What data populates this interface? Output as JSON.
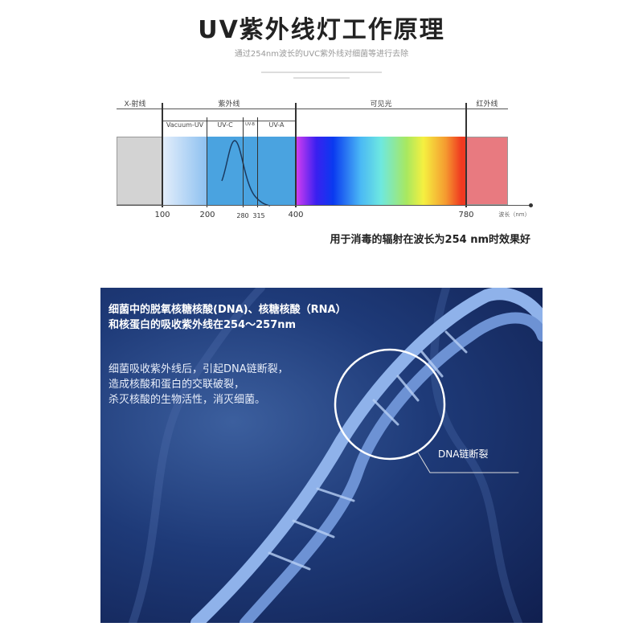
{
  "header": {
    "title": "UV紫外线灯工作原理",
    "subtitle": "通过254nm波长的UVC紫外线对细菌等进行去除"
  },
  "spectrum": {
    "regions": [
      "X-射线",
      "紫外线",
      "可见光",
      "红外线"
    ],
    "uv_subbands": [
      "Vacuum-UV",
      "UV-C",
      "UV-B",
      "UV-A"
    ],
    "ticks": [
      "100",
      "200",
      "280",
      "315",
      "400",
      "780"
    ],
    "axis_label": "波长（nm）",
    "note": "用于消毒的辐射在波长为254 nm时效果好",
    "colors": {
      "xray": "#d3d3d3",
      "uv": "#4aa3e0",
      "infrared": "#e87a80"
    }
  },
  "dna_panel": {
    "para1": [
      "细菌中的脱氧核糖核酸(DNA)、核糖核酸（RNA）",
      "和核蛋白的吸收紫外线在254～257nm"
    ],
    "para2": [
      "细菌吸收紫外线后，引起DNA链断裂，",
      "造成核酸和蛋白的交联破裂，",
      "杀灭核酸的生物活性，消灭细菌。"
    ],
    "callout": "DNA链断裂"
  }
}
